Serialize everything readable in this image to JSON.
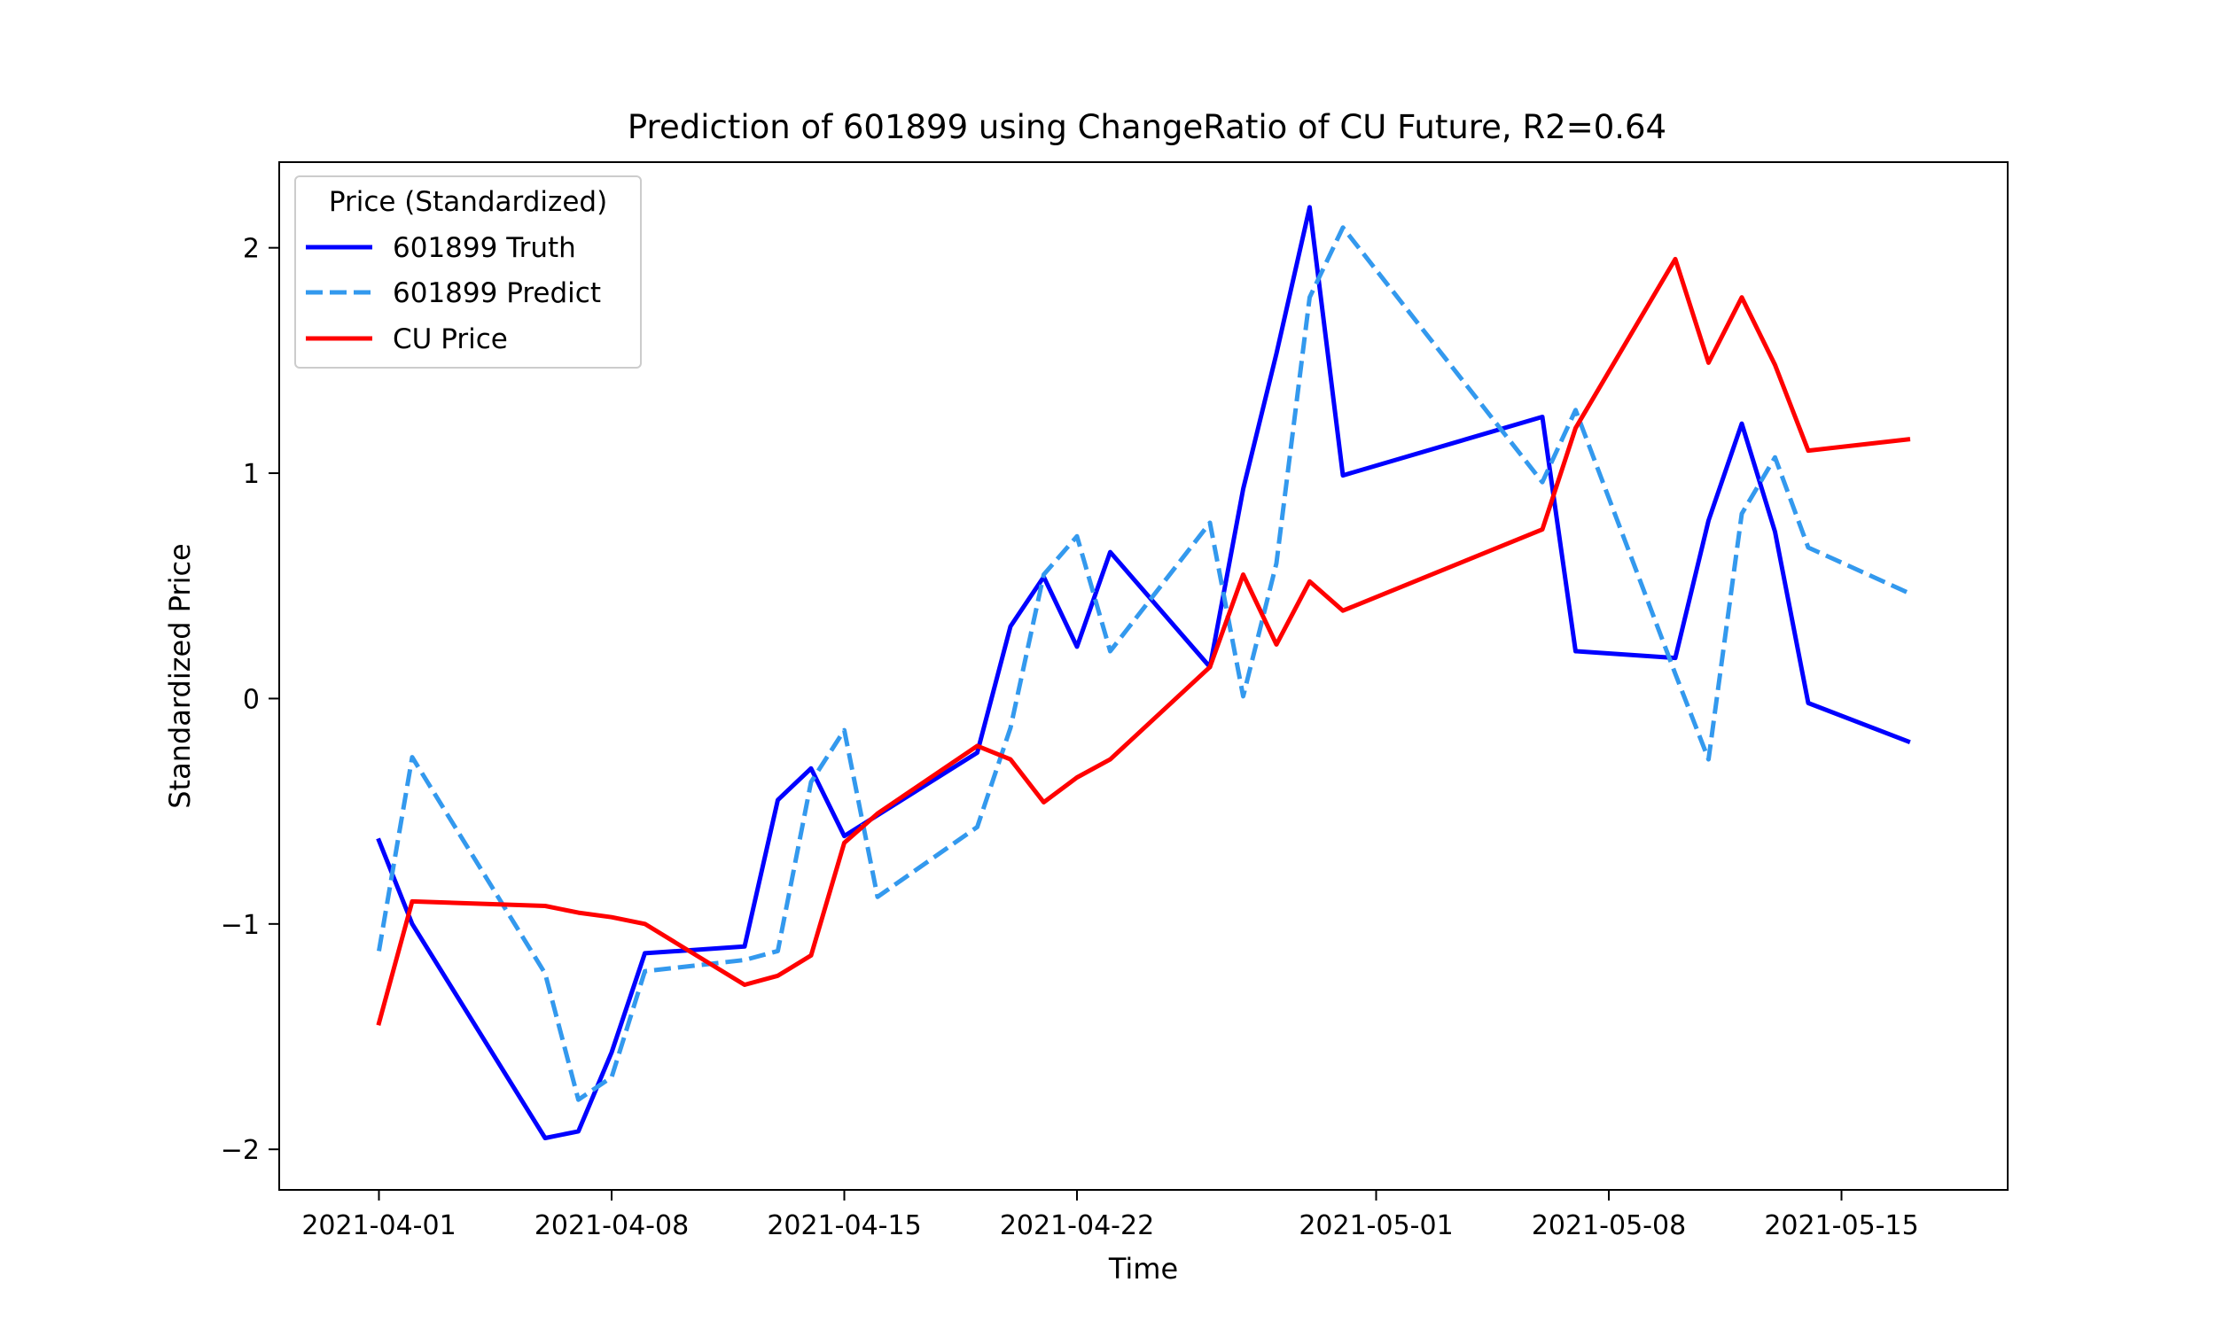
{
  "chart_data": {
    "type": "line",
    "title": "Prediction of 601899 using ChangeRatio of CU Future, R2=0.64",
    "xlabel": "Time",
    "ylabel": "Standardized Price",
    "x_axis_type": "date",
    "xlim": [
      "2021-03-29",
      "2021-05-20"
    ],
    "ylim": [
      -2.18,
      2.38
    ],
    "x_ticks": [
      "2021-04-01",
      "2021-04-08",
      "2021-04-15",
      "2021-04-22",
      "2021-05-01",
      "2021-05-08",
      "2021-05-15"
    ],
    "y_ticks": [
      {
        "value": -2,
        "label": "−2"
      },
      {
        "value": -1,
        "label": "−1"
      },
      {
        "value": 0,
        "label": "0"
      },
      {
        "value": 1,
        "label": "1"
      },
      {
        "value": 2,
        "label": "2"
      }
    ],
    "grid": false,
    "legend": {
      "title": "Price (Standardized)",
      "placement": "top-left"
    },
    "series": [
      {
        "name": "601899 Truth",
        "color": "#0000ff",
        "style": "solid",
        "points": [
          [
            "2021-04-01",
            -0.63
          ],
          [
            "2021-04-02",
            -1.0
          ],
          [
            "2021-04-06",
            -1.95
          ],
          [
            "2021-04-07",
            -1.92
          ],
          [
            "2021-04-08",
            -1.57
          ],
          [
            "2021-04-09",
            -1.13
          ],
          [
            "2021-04-12",
            -1.1
          ],
          [
            "2021-04-13",
            -0.45
          ],
          [
            "2021-04-14",
            -0.31
          ],
          [
            "2021-04-15",
            -0.61
          ],
          [
            "2021-04-19",
            -0.24
          ],
          [
            "2021-04-20",
            0.32
          ],
          [
            "2021-04-21",
            0.54
          ],
          [
            "2021-04-22",
            0.23
          ],
          [
            "2021-04-23",
            0.65
          ],
          [
            "2021-04-26",
            0.14
          ],
          [
            "2021-04-27",
            0.93
          ],
          [
            "2021-04-28",
            1.53
          ],
          [
            "2021-04-29",
            2.18
          ],
          [
            "2021-04-30",
            0.99
          ],
          [
            "2021-05-06",
            1.25
          ],
          [
            "2021-05-07",
            0.21
          ],
          [
            "2021-05-10",
            0.18
          ],
          [
            "2021-05-11",
            0.79
          ],
          [
            "2021-05-12",
            1.22
          ],
          [
            "2021-05-13",
            0.74
          ],
          [
            "2021-05-14",
            -0.02
          ],
          [
            "2021-05-17",
            -0.19
          ]
        ]
      },
      {
        "name": "601899 Predict",
        "color": "#3399ee",
        "style": "dashed",
        "points": [
          [
            "2021-04-01",
            -1.12
          ],
          [
            "2021-04-02",
            -0.26
          ],
          [
            "2021-04-06",
            -1.22
          ],
          [
            "2021-04-07",
            -1.78
          ],
          [
            "2021-04-08",
            -1.68
          ],
          [
            "2021-04-09",
            -1.21
          ],
          [
            "2021-04-12",
            -1.16
          ],
          [
            "2021-04-13",
            -1.12
          ],
          [
            "2021-04-14",
            -0.37
          ],
          [
            "2021-04-15",
            -0.14
          ],
          [
            "2021-04-16",
            -0.88
          ],
          [
            "2021-04-19",
            -0.57
          ],
          [
            "2021-04-20",
            -0.13
          ],
          [
            "2021-04-21",
            0.55
          ],
          [
            "2021-04-22",
            0.72
          ],
          [
            "2021-04-23",
            0.21
          ],
          [
            "2021-04-26",
            0.78
          ],
          [
            "2021-04-27",
            0.01
          ],
          [
            "2021-04-28",
            0.6
          ],
          [
            "2021-04-29",
            1.78
          ],
          [
            "2021-04-30",
            2.09
          ],
          [
            "2021-05-06",
            0.96
          ],
          [
            "2021-05-07",
            1.28
          ],
          [
            "2021-05-10",
            0.11
          ],
          [
            "2021-05-11",
            -0.27
          ],
          [
            "2021-05-12",
            0.82
          ],
          [
            "2021-05-13",
            1.07
          ],
          [
            "2021-05-14",
            0.67
          ],
          [
            "2021-05-17",
            0.47
          ]
        ]
      },
      {
        "name": "CU Price",
        "color": "#ff0000",
        "style": "solid",
        "points": [
          [
            "2021-04-01",
            -1.44
          ],
          [
            "2021-04-02",
            -0.9
          ],
          [
            "2021-04-06",
            -0.92
          ],
          [
            "2021-04-07",
            -0.95
          ],
          [
            "2021-04-08",
            -0.97
          ],
          [
            "2021-04-09",
            -1.0
          ],
          [
            "2021-04-12",
            -1.27
          ],
          [
            "2021-04-13",
            -1.23
          ],
          [
            "2021-04-14",
            -1.14
          ],
          [
            "2021-04-15",
            -0.64
          ],
          [
            "2021-04-16",
            -0.51
          ],
          [
            "2021-04-19",
            -0.21
          ],
          [
            "2021-04-20",
            -0.27
          ],
          [
            "2021-04-21",
            -0.46
          ],
          [
            "2021-04-22",
            -0.35
          ],
          [
            "2021-04-23",
            -0.27
          ],
          [
            "2021-04-26",
            0.14
          ],
          [
            "2021-04-27",
            0.55
          ],
          [
            "2021-04-28",
            0.24
          ],
          [
            "2021-04-29",
            0.52
          ],
          [
            "2021-04-30",
            0.39
          ],
          [
            "2021-05-06",
            0.75
          ],
          [
            "2021-05-07",
            1.2
          ],
          [
            "2021-05-10",
            1.95
          ],
          [
            "2021-05-11",
            1.49
          ],
          [
            "2021-05-12",
            1.78
          ],
          [
            "2021-05-13",
            1.48
          ],
          [
            "2021-05-14",
            1.1
          ],
          [
            "2021-05-17",
            1.15
          ]
        ]
      }
    ]
  }
}
